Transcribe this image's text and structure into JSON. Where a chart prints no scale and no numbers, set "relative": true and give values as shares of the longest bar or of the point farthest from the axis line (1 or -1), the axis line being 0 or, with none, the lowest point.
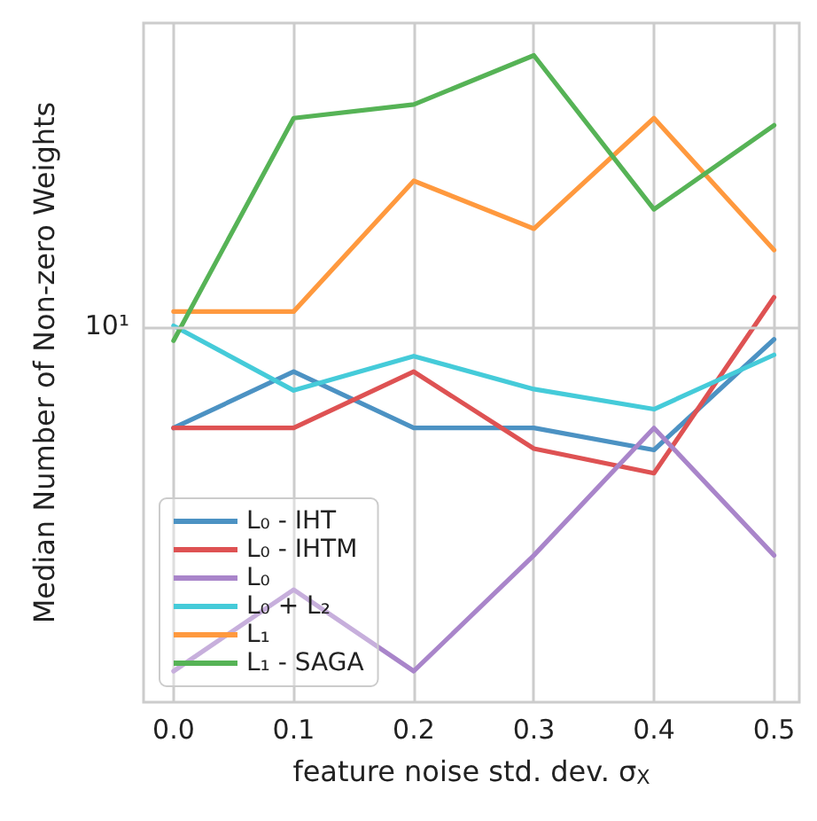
{
  "chart_data": {
    "type": "line",
    "xlabel": "feature noise std. dev. σ$_{X}$",
    "ylabel": "Median Number of Non-zero Weights",
    "x": [
      0,
      0.1,
      0.2,
      0.3,
      0.4,
      0.5
    ],
    "relative": true,
    "grid": true,
    "legend": "bottom left",
    "marker": "none",
    "line_style": "solid",
    "xlim": [
      -0.025,
      0.521
    ],
    "xticks": [
      {
        "value": 0,
        "label": "0.0"
      },
      {
        "value": 0.1,
        "label": "0.1"
      },
      {
        "value": 0.2,
        "label": "0.2"
      },
      {
        "value": 0.3,
        "label": "0.3"
      },
      {
        "value": 0.4,
        "label": "0.4"
      },
      {
        "value": 0.5,
        "label": "0.5"
      }
    ],
    "ref_lines": [
      {
        "axis": "y",
        "value": 0.582,
        "color": "#cccccc"
      }
    ],
    "annotations": [
      "10¹"
    ],
    "series": [
      {
        "name": "L₀ - IHT",
        "color": "#4c92c3",
        "values": [
          0.424,
          0.511,
          0.424,
          0.424,
          0.39,
          0.561
        ]
      },
      {
        "name": "L₀ - IHTM",
        "color": "#de5253",
        "values": [
          0.424,
          0.424,
          0.511,
          0.392,
          0.354,
          0.626
        ]
      },
      {
        "name": "L₀",
        "color": "#a985ca",
        "values": [
          0.048,
          0.174,
          0.048,
          0.227,
          0.424,
          0.227
        ]
      },
      {
        "name": "L₀ + L₂",
        "color": "#45cbd9",
        "values": [
          0.582,
          0.482,
          0.535,
          0.484,
          0.453,
          0.537
        ]
      },
      {
        "name": "L₁",
        "color": "#ff993e",
        "values": [
          0.604,
          0.604,
          0.806,
          0.732,
          0.903,
          0.699
        ]
      },
      {
        "name": "L₁ - SAGA",
        "color": "#56b356",
        "values": [
          0.559,
          0.903,
          0.924,
          1,
          0.762,
          0.892
        ]
      }
    ]
  }
}
